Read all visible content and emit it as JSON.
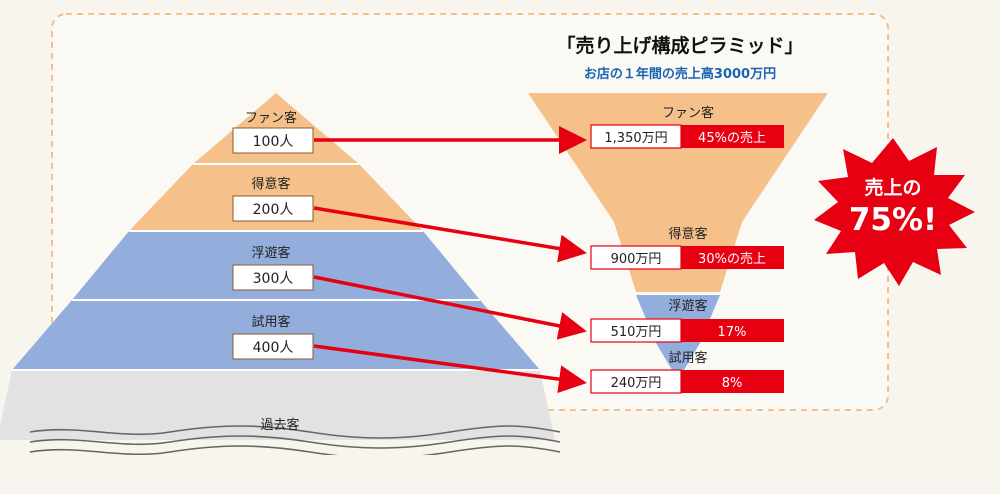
{
  "title": "「売り上げ構成ピラミッド」",
  "subtitle": "お店の１年間の売上高3000万円",
  "pyramid": {
    "tiers": [
      {
        "name": "ファン客",
        "count": "100人"
      },
      {
        "name": "得意客",
        "count": "200人"
      },
      {
        "name": "浮遊客",
        "count": "300人"
      },
      {
        "name": "試用客",
        "count": "400人"
      }
    ],
    "base_label": "過去客"
  },
  "sales": [
    {
      "name": "ファン客",
      "amount": "1,350万円",
      "share": "45%の売上"
    },
    {
      "name": "得意客",
      "amount": "900万円",
      "share": "30%の売上"
    },
    {
      "name": "浮遊客",
      "amount": "510万円",
      "share": "17%"
    },
    {
      "name": "試用客",
      "amount": "240万円",
      "share": "8%"
    }
  ],
  "callout": {
    "line1": "売上の",
    "line2": "75%!"
  },
  "colors": {
    "orange": "#f5c08a",
    "blue": "#93aedd",
    "gray": "#e2e2e2",
    "red": "#e60012",
    "dash": "#f3c08c",
    "subtitle": "#1a64b4"
  }
}
